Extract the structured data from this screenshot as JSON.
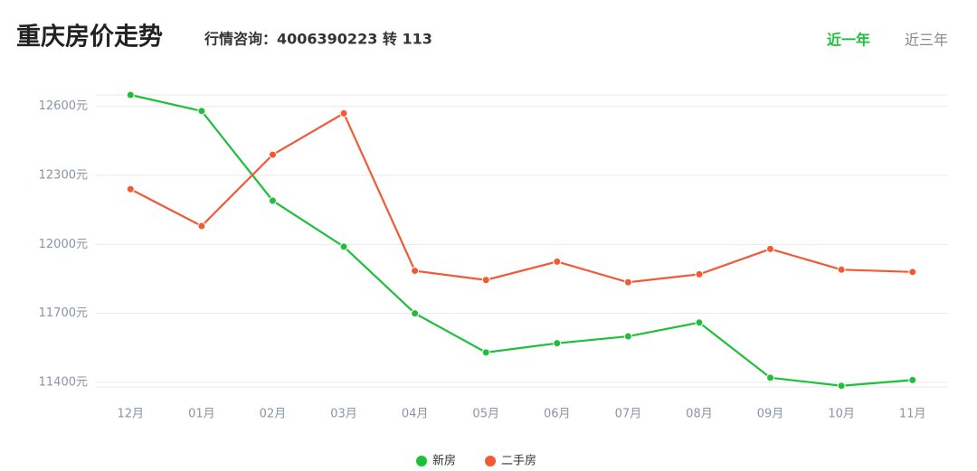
{
  "chart_data": {
    "type": "line",
    "title": "重庆房价走势",
    "subtitle": "行情咨询：4006390223 转 113",
    "tabs": [
      "近一年",
      "近三年"
    ],
    "active_tab": 0,
    "categories": [
      "12月",
      "01月",
      "02月",
      "03月",
      "04月",
      "05月",
      "06月",
      "07月",
      "08月",
      "09月",
      "10月",
      "11月"
    ],
    "series": [
      {
        "name": "新房",
        "color": "#1ec03b",
        "values": [
          12650,
          12580,
          12190,
          11990,
          11700,
          11530,
          11570,
          11600,
          11660,
          11420,
          11385,
          11410
        ]
      },
      {
        "name": "二手房",
        "color": "#f15a35",
        "values": [
          12240,
          12080,
          12390,
          12570,
          11885,
          11845,
          11925,
          11835,
          11870,
          11980,
          11890,
          11880
        ]
      }
    ],
    "ylim": [
      11380,
      12650
    ],
    "yticks": [
      {
        "value": 11400,
        "label": "11400元"
      },
      {
        "value": 11700,
        "label": "11700元"
      },
      {
        "value": 12000,
        "label": "12000元"
      },
      {
        "value": 12300,
        "label": "12300元"
      },
      {
        "value": 12600,
        "label": "12600元"
      }
    ],
    "grid": true,
    "legend": "bottom"
  }
}
